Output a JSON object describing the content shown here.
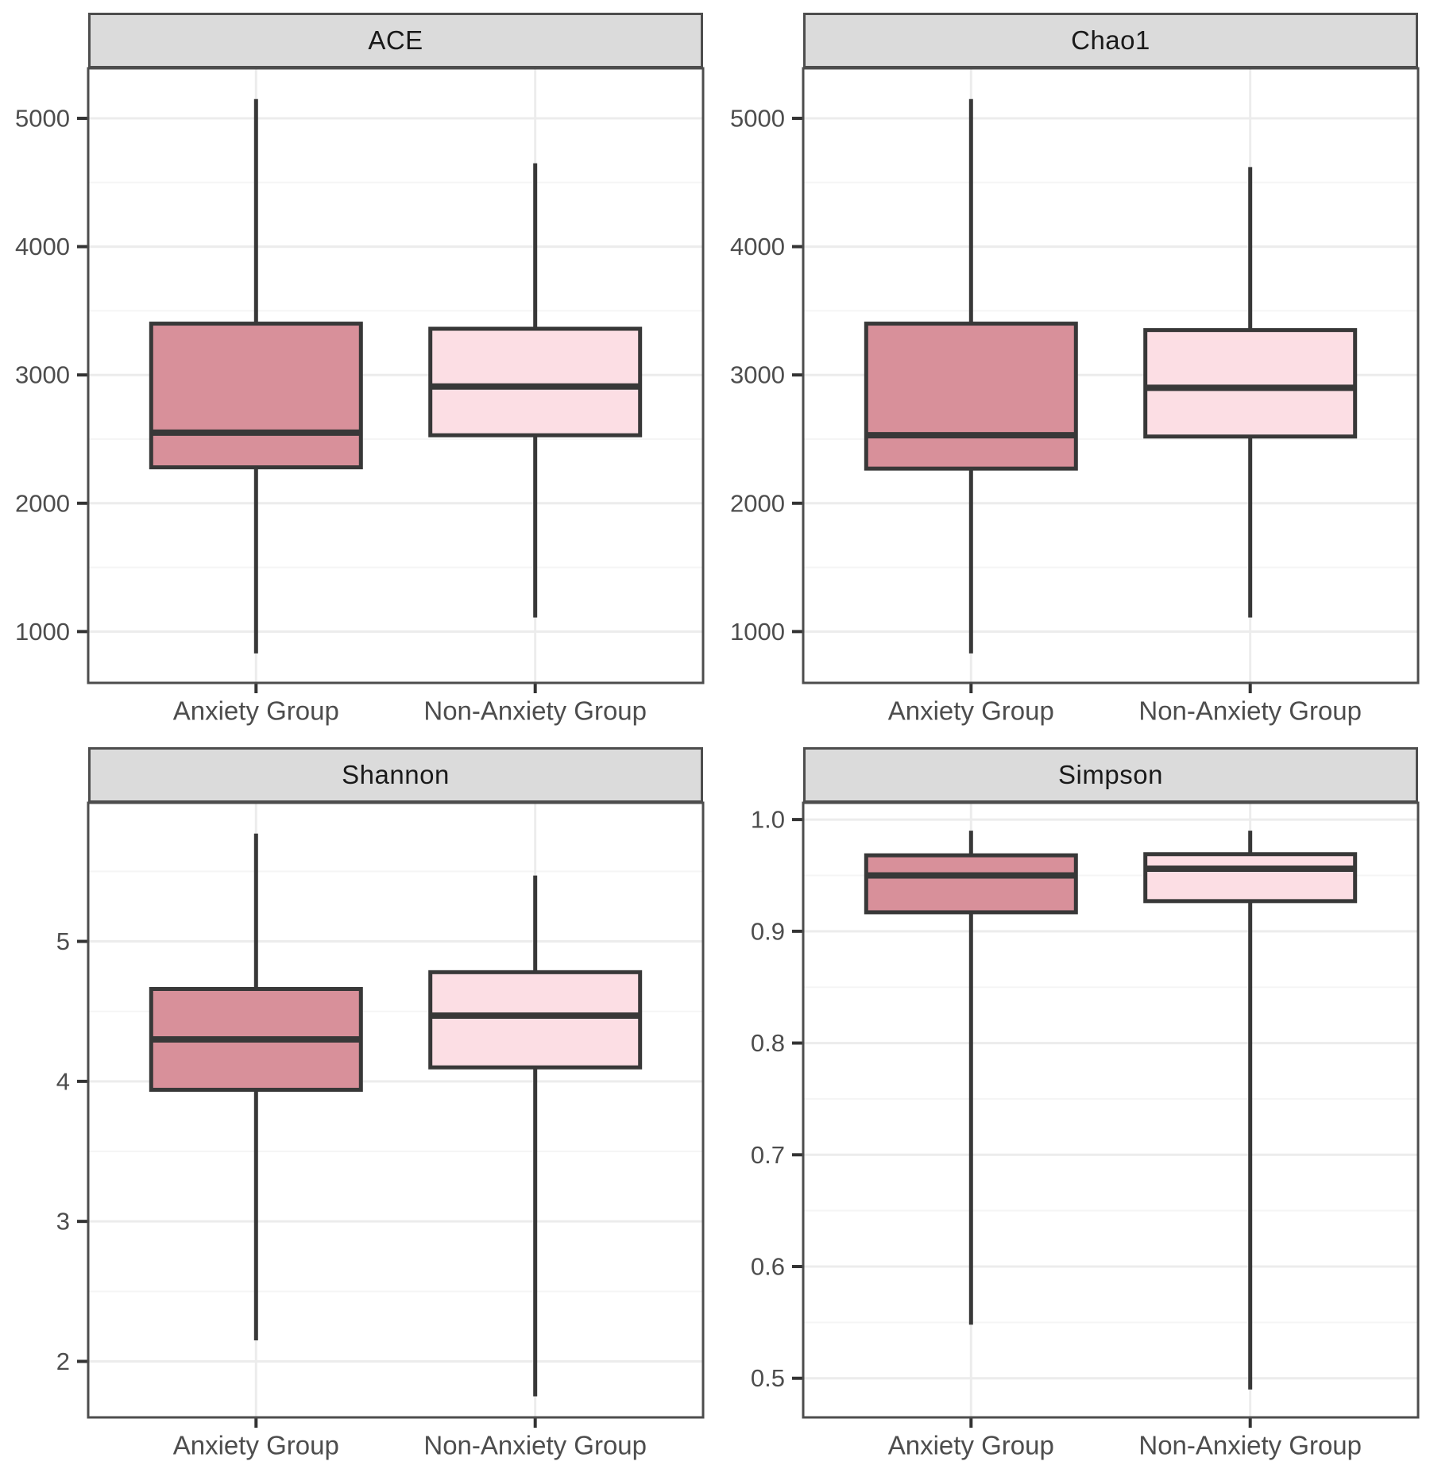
{
  "figure": {
    "background": "#FFFFFF",
    "facet_count": 4,
    "groups": [
      "Anxiety Group",
      "Non-Anxiety Group"
    ]
  },
  "style": {
    "strip_fill": "#DBDBDB",
    "strip_border": "#4D4D4D",
    "strip_text_color": "#1A1A1A",
    "panel_border": "#4D4D4D",
    "grid_major_color": "#ECECEC",
    "grid_minor_color": "#F5F5F5",
    "box_stroke": "#383838",
    "tick_mark_color": "#333333",
    "axis_text_color": "#4D4D4D",
    "anxiety_fill": "#D8909A",
    "non_anxiety_fill": "#FCDEE4"
  },
  "chart_data": [
    {
      "type": "boxplot",
      "panel": "ACE",
      "categories": [
        "Anxiety Group",
        "Non-Anxiety Group"
      ],
      "ylim": [
        600,
        5390
      ],
      "yticks": [
        1000,
        2000,
        3000,
        4000,
        5000
      ],
      "ytick_labels": [
        "1000",
        "2000",
        "3000",
        "4000",
        "5000"
      ],
      "grid": true,
      "legend": "none",
      "boxes": [
        {
          "group": "Anxiety Group",
          "whisker_low": 830,
          "q1": 2280,
          "median": 2550,
          "q3": 3400,
          "whisker_high": 5150,
          "fill": "#D8909A"
        },
        {
          "group": "Non-Anxiety Group",
          "whisker_low": 1110,
          "q1": 2530,
          "median": 2910,
          "q3": 3360,
          "whisker_high": 4650,
          "fill": "#FCDEE4"
        }
      ]
    },
    {
      "type": "boxplot",
      "panel": "Chao1",
      "categories": [
        "Anxiety Group",
        "Non-Anxiety Group"
      ],
      "ylim": [
        600,
        5390
      ],
      "yticks": [
        1000,
        2000,
        3000,
        4000,
        5000
      ],
      "ytick_labels": [
        "1000",
        "2000",
        "3000",
        "4000",
        "5000"
      ],
      "grid": true,
      "legend": "none",
      "boxes": [
        {
          "group": "Anxiety Group",
          "whisker_low": 830,
          "q1": 2270,
          "median": 2530,
          "q3": 3400,
          "whisker_high": 5150,
          "fill": "#D8909A"
        },
        {
          "group": "Non-Anxiety Group",
          "whisker_low": 1110,
          "q1": 2520,
          "median": 2900,
          "q3": 3350,
          "whisker_high": 4620,
          "fill": "#FCDEE4"
        }
      ]
    },
    {
      "type": "boxplot",
      "panel": "Shannon",
      "categories": [
        "Anxiety Group",
        "Non-Anxiety Group"
      ],
      "ylim": [
        1.6,
        5.99
      ],
      "yticks": [
        2,
        3,
        4,
        5
      ],
      "ytick_labels": [
        "2",
        "3",
        "4",
        "5"
      ],
      "grid": true,
      "legend": "none",
      "boxes": [
        {
          "group": "Anxiety Group",
          "whisker_low": 2.15,
          "q1": 3.94,
          "median": 4.3,
          "q3": 4.66,
          "whisker_high": 5.77,
          "fill": "#D8909A"
        },
        {
          "group": "Non-Anxiety Group",
          "whisker_low": 1.75,
          "q1": 4.1,
          "median": 4.47,
          "q3": 4.78,
          "whisker_high": 5.47,
          "fill": "#FCDEE4"
        }
      ]
    },
    {
      "type": "boxplot",
      "panel": "Simpson",
      "categories": [
        "Anxiety Group",
        "Non-Anxiety Group"
      ],
      "ylim": [
        0.465,
        1.015
      ],
      "yticks": [
        0.5,
        0.6,
        0.7,
        0.8,
        0.9,
        1.0
      ],
      "ytick_labels": [
        "0.5",
        "0.6",
        "0.7",
        "0.8",
        "0.9",
        "1.0"
      ],
      "grid": true,
      "legend": "none",
      "boxes": [
        {
          "group": "Anxiety Group",
          "whisker_low": 0.548,
          "q1": 0.917,
          "median": 0.95,
          "q3": 0.968,
          "whisker_high": 0.99,
          "fill": "#D8909A"
        },
        {
          "group": "Non-Anxiety Group",
          "whisker_low": 0.49,
          "q1": 0.927,
          "median": 0.956,
          "q3": 0.969,
          "whisker_high": 0.99,
          "fill": "#FCDEE4"
        }
      ]
    }
  ]
}
